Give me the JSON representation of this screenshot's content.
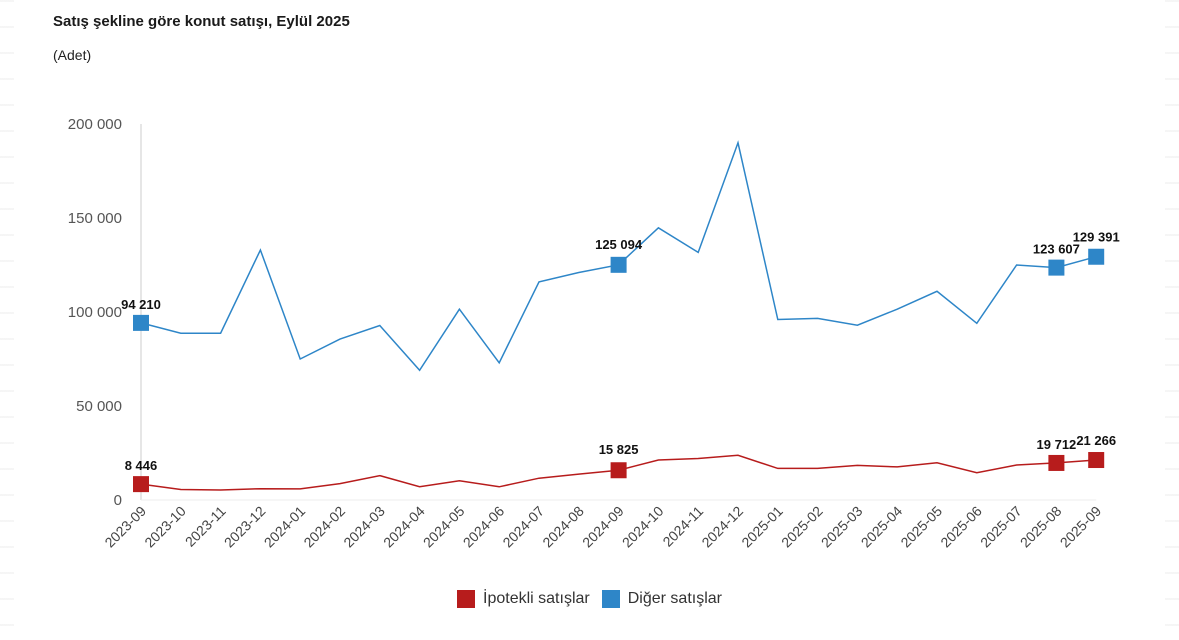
{
  "chart_data": {
    "type": "line",
    "title": "Satış şekline göre konut satışı, Eylül 2025",
    "subtitle": "(Adet)",
    "xlabel": "",
    "ylabel": "",
    "ylim": [
      0,
      200000
    ],
    "yticks": [
      {
        "value": 0,
        "label": "0"
      },
      {
        "value": 50000,
        "label": "50 000"
      },
      {
        "value": 100000,
        "label": "100 000"
      },
      {
        "value": 150000,
        "label": "150 000"
      },
      {
        "value": 200000,
        "label": "200 000"
      }
    ],
    "categories": [
      "2023-09",
      "2023-10",
      "2023-11",
      "2023-12",
      "2024-01",
      "2024-02",
      "2024-03",
      "2024-04",
      "2024-05",
      "2024-06",
      "2024-07",
      "2024-08",
      "2024-09",
      "2024-10",
      "2024-11",
      "2024-12",
      "2025-01",
      "2025-02",
      "2025-03",
      "2025-04",
      "2025-05",
      "2025-06",
      "2025-07",
      "2025-08",
      "2025-09"
    ],
    "legend_position": "bottom",
    "series": [
      {
        "name": "İpotekli satışlar",
        "color": "#b71c1c",
        "values": [
          8446,
          5600,
          5300,
          6000,
          5900,
          8700,
          13000,
          7100,
          10200,
          7000,
          11600,
          13800,
          15825,
          21300,
          22100,
          23800,
          16800,
          16800,
          18400,
          17600,
          19800,
          14500,
          18600,
          19712,
          21266
        ],
        "markers": [
          0,
          12,
          23,
          24
        ],
        "labels": {
          "0": "8 446",
          "12": "15 825",
          "23": "19 712",
          "24": "21 266"
        }
      },
      {
        "name": "Diğer satışlar",
        "color": "#2e86c8",
        "values": [
          94210,
          88700,
          88700,
          133000,
          75000,
          85600,
          92800,
          69000,
          101500,
          73000,
          116000,
          121000,
          125094,
          144800,
          131700,
          190000,
          96000,
          96600,
          93000,
          101500,
          111000,
          94000,
          125000,
          123607,
          129391
        ],
        "markers": [
          0,
          12,
          23,
          24
        ],
        "labels": {
          "0": "94 210",
          "12": "125 094",
          "23": "123 607",
          "24": "129 391"
        }
      }
    ]
  }
}
